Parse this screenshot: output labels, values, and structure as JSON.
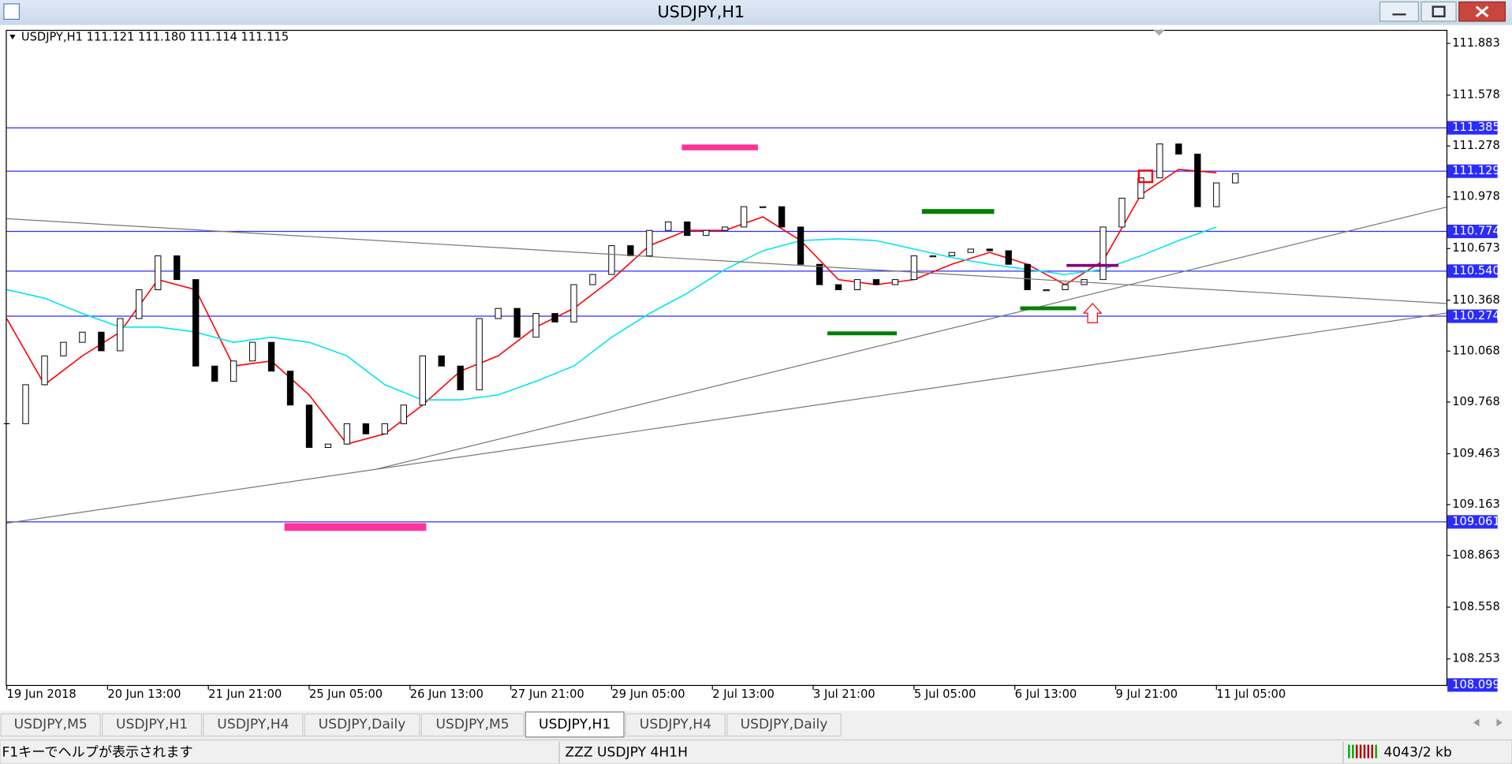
{
  "window": {
    "title": "USDJPY,H1"
  },
  "chart_data": {
    "type": "candlestick",
    "header": "USDJPY,H1  111.121 111.180 111.114 111.115",
    "x": [
      0,
      6,
      12,
      18,
      24,
      30,
      36,
      42,
      48,
      54,
      60,
      66,
      72,
      78,
      84,
      90,
      96,
      102,
      108,
      114,
      120,
      126,
      132,
      138,
      144,
      150,
      156,
      162,
      168,
      174,
      180,
      186,
      192,
      198,
      204,
      210,
      216,
      222,
      228,
      234,
      240,
      246,
      252,
      258,
      264,
      270,
      276,
      282,
      288,
      294,
      300,
      306,
      312,
      318,
      324,
      330,
      336,
      342,
      348,
      354,
      360,
      366,
      372,
      378,
      384,
      390
    ],
    "values": [
      109.64,
      109.87,
      110.04,
      110.12,
      110.18,
      110.07,
      110.26,
      110.43,
      110.63,
      110.49,
      109.98,
      109.89,
      110.01,
      110.12,
      109.95,
      109.75,
      109.5,
      109.52,
      109.64,
      109.58,
      109.64,
      109.75,
      110.04,
      109.98,
      109.84,
      110.26,
      110.32,
      110.15,
      110.29,
      110.24,
      110.46,
      110.52,
      110.69,
      110.63,
      110.78,
      110.83,
      110.75,
      110.78,
      110.8,
      110.92,
      110.92,
      110.8,
      110.58,
      110.46,
      110.43,
      110.49,
      110.46,
      110.49,
      110.63,
      110.63,
      110.65,
      110.67,
      110.66,
      110.58,
      110.43,
      110.43,
      110.46,
      110.49,
      110.8,
      110.97,
      111.09,
      111.29,
      111.23,
      110.92,
      111.06,
      111.115
    ],
    "overlays": [
      {
        "color": "#ff0000",
        "x": [
          0,
          12,
          24,
          36,
          48,
          60,
          72,
          84,
          96,
          108,
          120,
          132,
          144,
          156,
          168,
          180,
          192,
          204,
          216,
          228,
          240,
          252,
          264,
          276,
          288,
          300,
          312,
          324,
          336,
          348,
          360,
          372,
          384
        ],
        "values": [
          110.26,
          109.87,
          110.04,
          110.18,
          110.49,
          110.43,
          109.98,
          110.01,
          109.81,
          109.52,
          109.58,
          109.75,
          109.95,
          110.04,
          110.21,
          110.32,
          110.49,
          110.69,
          110.78,
          110.78,
          110.86,
          110.72,
          110.49,
          110.46,
          110.49,
          110.58,
          110.65,
          110.58,
          110.46,
          110.6,
          110.99,
          111.14,
          111.12
        ]
      },
      {
        "color": "#00e5ee",
        "x": [
          0,
          12,
          24,
          36,
          48,
          60,
          72,
          84,
          96,
          108,
          120,
          132,
          144,
          156,
          168,
          180,
          192,
          204,
          216,
          228,
          240,
          252,
          264,
          276,
          288,
          300,
          312,
          324,
          336,
          348,
          360,
          372,
          384
        ],
        "values": [
          110.43,
          110.38,
          110.29,
          110.21,
          110.21,
          110.18,
          110.12,
          110.15,
          110.12,
          110.04,
          109.87,
          109.78,
          109.78,
          109.81,
          109.89,
          109.98,
          110.15,
          110.29,
          110.41,
          110.55,
          110.66,
          110.72,
          110.73,
          110.72,
          110.67,
          110.62,
          110.58,
          110.55,
          110.52,
          110.55,
          110.63,
          110.72,
          110.8
        ]
      }
    ],
    "xlim": [
      0,
      457
    ],
    "xticks": [
      {
        "value": 0,
        "label": "19 Jun 2018"
      },
      {
        "value": 32,
        "label": "20 Jun 13:00"
      },
      {
        "value": 64,
        "label": "21 Jun 21:00"
      },
      {
        "value": 96,
        "label": "25 Jun 05:00"
      },
      {
        "value": 128,
        "label": "26 Jun 13:00"
      },
      {
        "value": 160,
        "label": "27 Jun 21:00"
      },
      {
        "value": 192,
        "label": "29 Jun 05:00"
      },
      {
        "value": 224,
        "label": "2 Jul 13:00"
      },
      {
        "value": 256,
        "label": "3 Jul 21:00"
      },
      {
        "value": 288,
        "label": "5 Jul 05:00"
      },
      {
        "value": 320,
        "label": "6 Jul 13:00"
      },
      {
        "value": 352,
        "label": "9 Jul 21:00"
      },
      {
        "value": 384,
        "label": "11 Jul 05:00"
      }
    ],
    "ylim": [
      108.099,
      111.957
    ],
    "yticks": [
      111.883,
      111.578,
      111.278,
      110.978,
      110.673,
      110.368,
      110.068,
      109.768,
      109.463,
      109.163,
      108.863,
      108.558,
      108.253
    ],
    "levels": [
      111.385,
      111.129,
      110.774,
      {
        "value": 110.54,
        "label": "110.540"
      },
      110.274,
      109.061
    ],
    "bull_color": "#ffffff",
    "bear_color": "#000000",
    "level_color": "#2b2bff"
  },
  "tabs": {
    "items": [
      "USDJPY,M5",
      "USDJPY,H1",
      "USDJPY,H4",
      "USDJPY,Daily",
      "USDJPY,M5",
      "USDJPY,H1",
      "USDJPY,H4",
      "USDJPY,Daily"
    ],
    "active": 5
  },
  "status": {
    "help": "F1キーでヘルプが表示されます",
    "profile": "ZZZ USDJPY 4H1H",
    "traffic": "4043/2 kb"
  }
}
